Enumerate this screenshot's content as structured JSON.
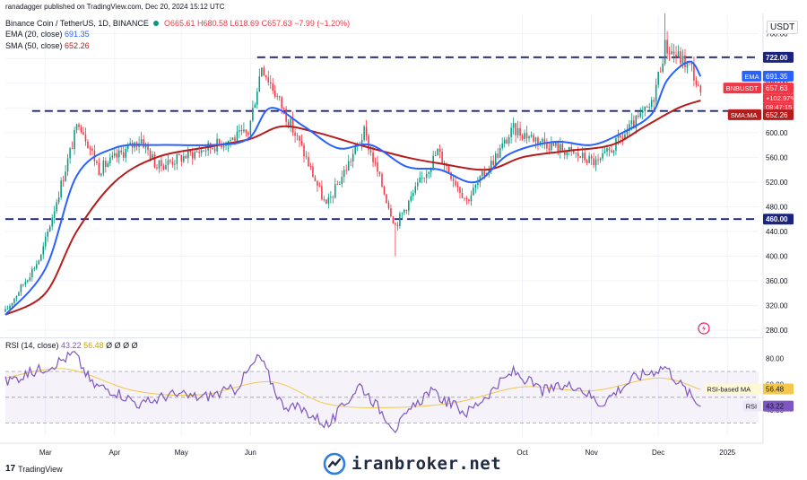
{
  "header": {
    "published_by": "ranadagger published on TradingView.com, Dec 20, 2024 15:12 UTC",
    "symbol": "Binance Coin / TetherUS, 1D, BINANCE",
    "open": "O665.61",
    "high": "H680.58",
    "low": "L618.69",
    "close": "C657.63",
    "change": "−7.99 (−1.20%)",
    "currency": "USDT"
  },
  "indicators": {
    "ema_label": "EMA (20, close)",
    "ema_value": "691.35",
    "sma_label": "SMA (50, close)",
    "sma_value": "652.26",
    "rsi_label": "RSI (14, close)",
    "rsi_value": "43.22",
    "rsi_ma_value": "56.48",
    "rsi_extra": "Ø Ø Ø Ø"
  },
  "footer": {
    "logo_text": "TradingView",
    "watermark": "iranbroker.net"
  },
  "colors": {
    "up": "#089981",
    "down": "#f23645",
    "ema": "#2962ff",
    "sma": "#b71c1c",
    "rsi": "#7e57c2",
    "rsi_ma": "#f2c94c",
    "level": "#1a237e"
  },
  "chart_data": [
    {
      "type": "candlestick",
      "price_axis": {
        "ticks": [
          280,
          320,
          360,
          400,
          440,
          480,
          520,
          560,
          600,
          640,
          680,
          720,
          760
        ],
        "labels": [
          "280.00",
          "320.00",
          "360.00",
          "400.00",
          "440.00",
          "480.00",
          "520.00",
          "560.00",
          "600.00",
          "640.00",
          "680.00",
          "720.00",
          "760.00"
        ],
        "range": [
          270,
          790
        ]
      },
      "time_axis": {
        "labels": [
          "Mar",
          "Apr",
          "May",
          "Jun",
          "Oct",
          "Nov",
          "Dec",
          "2025"
        ],
        "positions": [
          "2024-03-01",
          "2024-04-01",
          "2024-05-01",
          "2024-06-01",
          "2024-10-01",
          "2024-11-01",
          "2024-12-01",
          "2025-01-01"
        ],
        "range": [
          "2024-02-12",
          "2025-01-15"
        ]
      },
      "horizontal_levels": [
        {
          "value": 722,
          "label": "722.00",
          "from": "2024-06-04"
        },
        {
          "value": 635,
          "label": "635.00",
          "from": "2024-02-24"
        },
        {
          "value": 460,
          "label": "460.00",
          "from": "2024-02-12"
        }
      ],
      "price_labels": [
        {
          "text": "EMA",
          "value_text": "691.35",
          "value": 691.35,
          "series": "ema"
        },
        {
          "text": "BNBUSDT",
          "value_text": "657.63",
          "value": 657.63,
          "series": "last"
        },
        {
          "text": "SMA:MA",
          "value_text": "652.26",
          "value": 652.26,
          "series": "sma"
        }
      ],
      "last_price_extra": [
        "+102.97%",
        "08:47:15"
      ],
      "ohlc_segments": [
        {
          "from": "2024-02-12",
          "to": "2024-02-28",
          "start": 310,
          "end": 400
        },
        {
          "from": "2024-02-28",
          "to": "2024-03-16",
          "start": 400,
          "end": 620
        },
        {
          "from": "2024-03-16",
          "to": "2024-03-25",
          "start": 620,
          "end": 540
        },
        {
          "from": "2024-03-25",
          "to": "2024-04-13",
          "start": 540,
          "end": 590
        },
        {
          "from": "2024-04-13",
          "to": "2024-04-20",
          "start": 590,
          "end": 545
        },
        {
          "from": "2024-04-20",
          "to": "2024-05-31",
          "start": 545,
          "end": 600
        },
        {
          "from": "2024-05-31",
          "to": "2024-06-06",
          "start": 600,
          "end": 710
        },
        {
          "from": "2024-06-06",
          "to": "2024-06-24",
          "start": 710,
          "end": 575
        },
        {
          "from": "2024-06-24",
          "to": "2024-07-05",
          "start": 575,
          "end": 480
        },
        {
          "from": "2024-07-05",
          "to": "2024-07-22",
          "start": 480,
          "end": 600
        },
        {
          "from": "2024-07-22",
          "to": "2024-08-05",
          "start": 600,
          "end": 450
        },
        {
          "from": "2024-08-05",
          "to": "2024-08-24",
          "start": 450,
          "end": 570
        },
        {
          "from": "2024-08-24",
          "to": "2024-09-06",
          "start": 570,
          "end": 490
        },
        {
          "from": "2024-09-06",
          "to": "2024-09-27",
          "start": 490,
          "end": 605
        },
        {
          "from": "2024-09-27",
          "to": "2024-11-04",
          "start": 605,
          "end": 550
        },
        {
          "from": "2024-11-04",
          "to": "2024-11-28",
          "start": 550,
          "end": 645
        },
        {
          "from": "2024-11-28",
          "to": "2024-12-04",
          "start": 645,
          "end": 740
        },
        {
          "from": "2024-12-04",
          "to": "2024-12-16",
          "start": 740,
          "end": 705
        },
        {
          "from": "2024-12-16",
          "to": "2024-12-20",
          "start": 705,
          "end": 657
        }
      ],
      "special_wicks": [
        {
          "date": "2024-08-05",
          "low": 400
        },
        {
          "date": "2024-12-04",
          "high": 793
        }
      ],
      "ema": {
        "dates": [
          "2024-02-12",
          "2024-03-01",
          "2024-03-15",
          "2024-04-01",
          "2024-04-20",
          "2024-05-15",
          "2024-05-31",
          "2024-06-10",
          "2024-06-25",
          "2024-07-10",
          "2024-07-25",
          "2024-08-10",
          "2024-08-25",
          "2024-09-10",
          "2024-09-25",
          "2024-10-15",
          "2024-11-01",
          "2024-11-15",
          "2024-11-28",
          "2024-12-05",
          "2024-12-15",
          "2024-12-20"
        ],
        "values": [
          305,
          380,
          530,
          575,
          580,
          580,
          590,
          640,
          610,
          575,
          580,
          545,
          540,
          520,
          565,
          585,
          580,
          600,
          630,
          685,
          715,
          691
        ]
      },
      "sma": {
        "dates": [
          "2024-02-12",
          "2024-03-01",
          "2024-03-15",
          "2024-04-01",
          "2024-04-20",
          "2024-05-15",
          "2024-06-01",
          "2024-06-15",
          "2024-07-01",
          "2024-07-20",
          "2024-08-10",
          "2024-08-25",
          "2024-09-15",
          "2024-10-01",
          "2024-10-20",
          "2024-11-10",
          "2024-11-25",
          "2024-12-10",
          "2024-12-20"
        ],
        "values": [
          305,
          340,
          440,
          520,
          560,
          578,
          590,
          610,
          600,
          580,
          560,
          550,
          540,
          560,
          570,
          580,
          610,
          640,
          652
        ]
      }
    },
    {
      "type": "line",
      "name": "RSI (14, close)",
      "y_axis": {
        "ticks": [
          40,
          60,
          80
        ],
        "labels": [
          "40.00",
          "60.00",
          "80.00"
        ],
        "range": [
          20,
          95
        ]
      },
      "band": [
        30,
        70
      ],
      "midline": 50,
      "rsi": {
        "dates": [
          "2024-02-12",
          "2024-02-25",
          "2024-03-05",
          "2024-03-14",
          "2024-03-22",
          "2024-04-01",
          "2024-04-13",
          "2024-04-25",
          "2024-05-10",
          "2024-05-25",
          "2024-06-05",
          "2024-06-15",
          "2024-06-25",
          "2024-07-06",
          "2024-07-20",
          "2024-08-05",
          "2024-08-20",
          "2024-09-06",
          "2024-09-27",
          "2024-10-10",
          "2024-10-25",
          "2024-11-05",
          "2024-11-20",
          "2024-11-28",
          "2024-12-04",
          "2024-12-12",
          "2024-12-20"
        ],
        "values": [
          62,
          70,
          76,
          84,
          60,
          55,
          44,
          52,
          50,
          56,
          82,
          45,
          40,
          28,
          60,
          26,
          55,
          38,
          70,
          55,
          60,
          45,
          65,
          70,
          74,
          58,
          43
        ]
      },
      "rsi_ma": {
        "dates": [
          "2024-02-12",
          "2024-03-10",
          "2024-04-10",
          "2024-05-10",
          "2024-06-10",
          "2024-07-05",
          "2024-08-01",
          "2024-09-01",
          "2024-10-01",
          "2024-11-01",
          "2024-12-01",
          "2024-12-20"
        ],
        "values": [
          65,
          72,
          55,
          52,
          62,
          45,
          42,
          46,
          58,
          55,
          65,
          56
        ]
      }
    }
  ]
}
